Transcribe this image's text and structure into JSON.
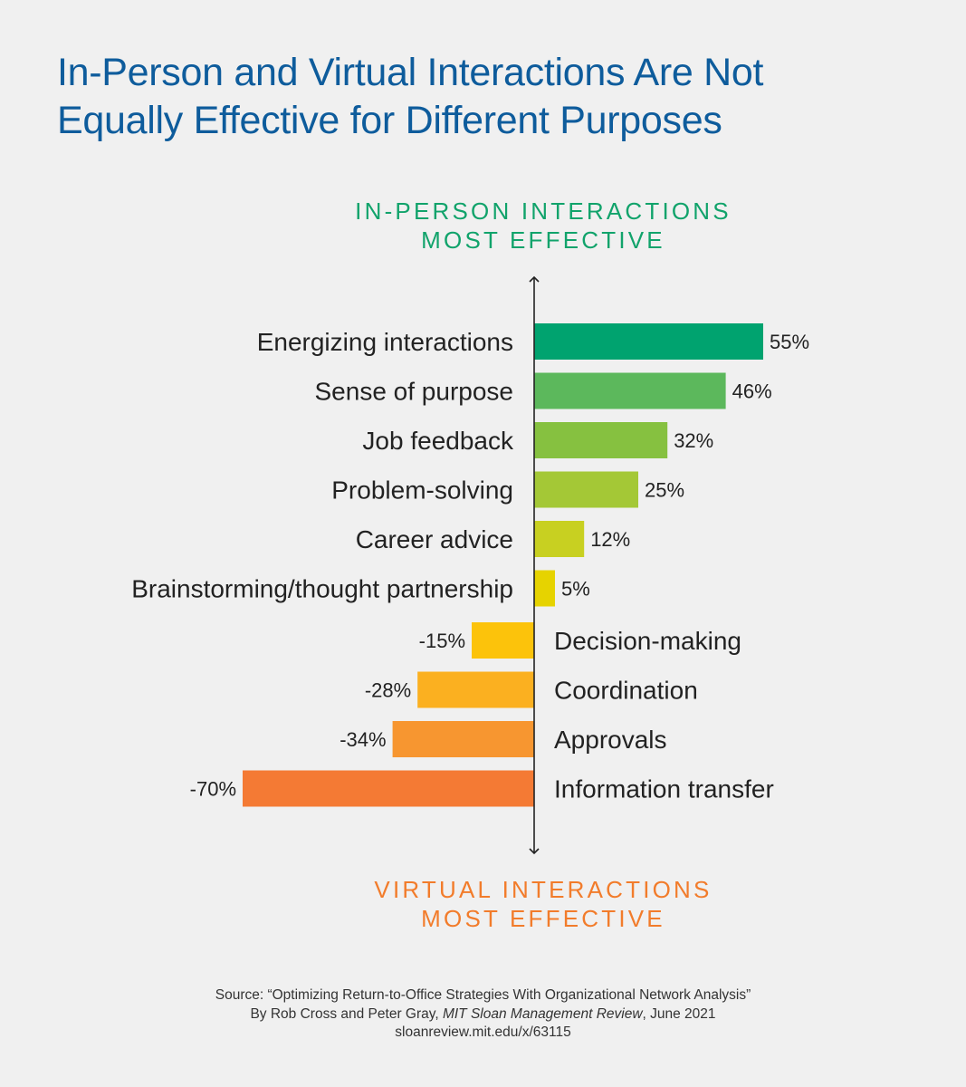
{
  "title": {
    "line1": "In-Person and Virtual Interactions Are Not",
    "line2": "Equally Effective for Different Purposes"
  },
  "poles": {
    "top": {
      "line1": "IN-PERSON INTERACTIONS",
      "line2": "MOST EFFECTIVE",
      "color": "#11a36b"
    },
    "bottom": {
      "line1": "VIRTUAL INTERACTIONS",
      "line2": "MOST EFFECTIVE",
      "color": "#f27c2b"
    }
  },
  "chart_data": {
    "type": "bar",
    "orientation": "horizontal-diverging",
    "categories": [
      "Energizing interactions",
      "Sense of purpose",
      "Job feedback",
      "Problem-solving",
      "Career advice",
      "Brainstorming/thought partnership",
      "Decision-making",
      "Coordination",
      "Approvals",
      "Information transfer"
    ],
    "values": [
      55,
      46,
      32,
      25,
      12,
      5,
      -15,
      -28,
      -34,
      -70
    ],
    "labels": [
      "55%",
      "46%",
      "32%",
      "25%",
      "12%",
      "5%",
      "-15%",
      "-28%",
      "-34%",
      "-70%"
    ],
    "colors": [
      "#00a36f",
      "#5cb85c",
      "#86c140",
      "#a4c836",
      "#c8d021",
      "#e6d300",
      "#fcc30b",
      "#fbb020",
      "#f79630",
      "#f47a34"
    ],
    "xlim": [
      -70,
      55
    ],
    "unit": "%",
    "axis": "vertical arrow at zero, pointing up and down"
  },
  "source": {
    "line1": "Source: “Optimizing Return-to-Office Strategies With Organizational Network Analysis”",
    "line2_prefix": "By Rob Cross and Peter Gray, ",
    "line2_italic": "MIT Sloan Management Review",
    "line2_suffix": ", June 2021",
    "line3": "sloanreview.mit.edu/x/63115"
  }
}
